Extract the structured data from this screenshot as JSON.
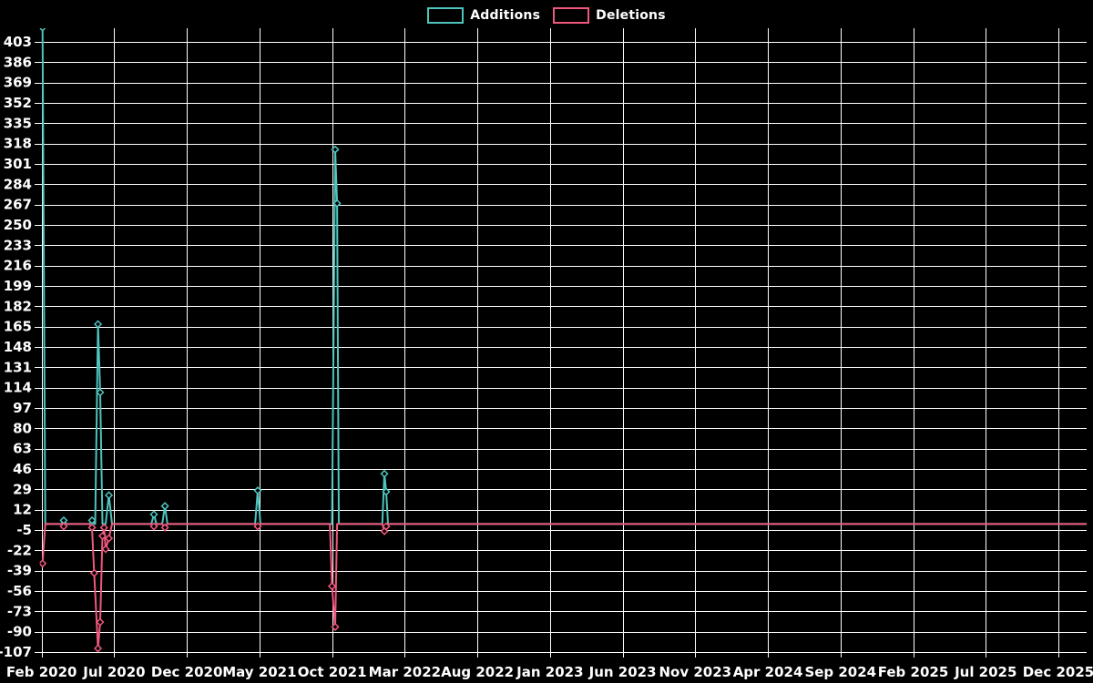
{
  "legend": {
    "additions_label": "Additions",
    "deletions_label": "Deletions"
  },
  "colors": {
    "background": "#000000",
    "grid": "#ffffff",
    "text": "#ffffff",
    "additions": "#4ec4bd",
    "deletions": "#f0587e"
  },
  "chart_data": {
    "type": "line",
    "title": "",
    "xlabel": "",
    "ylabel": "",
    "grid": true,
    "legend_position": "top-center",
    "background": "#000000",
    "y_ticks": [
      403,
      386,
      369,
      352,
      335,
      318,
      301,
      284,
      267,
      250,
      233,
      216,
      199,
      182,
      165,
      148,
      131,
      114,
      97,
      80,
      63,
      46,
      29,
      12,
      -5,
      -22,
      -39,
      -56,
      -73,
      -90,
      -107
    ],
    "ylim": [
      -110,
      413
    ],
    "x_ticks": {
      "months": [
        0,
        5,
        10,
        15,
        20,
        25,
        30,
        35,
        40,
        45,
        50,
        55,
        60,
        65,
        70
      ],
      "labels": [
        "Feb 2020",
        "Jul 2020",
        "Dec 2020",
        "May 2021",
        "Oct 2021",
        "Mar 2022",
        "Aug 2022",
        "Jan 2023",
        "Jun 2023",
        "Nov 2023",
        "Apr 2024",
        "Sep 2024",
        "Feb 2025",
        "Jul 2025",
        "Dec 2025"
      ],
      "xlim_months": [
        0,
        71.95
      ]
    },
    "marker": "diamond",
    "series": [
      {
        "name": "Additions",
        "color": "#4ec4bd",
        "points": [
          [
            0.06,
            415
          ],
          [
            0.25,
            0
          ],
          [
            1.35,
            0
          ],
          [
            1.52,
            3
          ],
          [
            1.7,
            0
          ],
          [
            3.3,
            0
          ],
          [
            3.47,
            3
          ],
          [
            3.62,
            0
          ],
          [
            3.69,
            0
          ],
          [
            3.88,
            167
          ],
          [
            4.03,
            110
          ],
          [
            4.19,
            0
          ],
          [
            4.41,
            0
          ],
          [
            4.63,
            24
          ],
          [
            4.85,
            0
          ],
          [
            7.55,
            0
          ],
          [
            7.73,
            8
          ],
          [
            7.9,
            0
          ],
          [
            8.3,
            0
          ],
          [
            8.49,
            15
          ],
          [
            8.66,
            0
          ],
          [
            14.7,
            0
          ],
          [
            14.88,
            28
          ],
          [
            15.06,
            0
          ],
          [
            19.99,
            0
          ],
          [
            20.21,
            313
          ],
          [
            20.34,
            268
          ],
          [
            20.46,
            0
          ],
          [
            23.45,
            0
          ],
          [
            23.6,
            42
          ],
          [
            23.72,
            27
          ],
          [
            23.85,
            0
          ],
          [
            71.95,
            0
          ]
        ]
      },
      {
        "name": "Deletions",
        "color": "#f0587e",
        "points": [
          [
            0.06,
            -33
          ],
          [
            0.25,
            0
          ],
          [
            1.35,
            0
          ],
          [
            1.52,
            -2
          ],
          [
            1.7,
            0
          ],
          [
            3.3,
            0
          ],
          [
            3.47,
            -3
          ],
          [
            3.62,
            -41
          ],
          [
            3.88,
            -104
          ],
          [
            4.03,
            -82
          ],
          [
            4.19,
            -10
          ],
          [
            4.3,
            -3
          ],
          [
            4.41,
            -21
          ],
          [
            4.63,
            -12
          ],
          [
            4.85,
            0
          ],
          [
            7.55,
            0
          ],
          [
            7.73,
            -2
          ],
          [
            7.9,
            0
          ],
          [
            8.3,
            0
          ],
          [
            8.49,
            -3
          ],
          [
            8.66,
            0
          ],
          [
            14.7,
            0
          ],
          [
            14.88,
            -2
          ],
          [
            15.06,
            0
          ],
          [
            19.85,
            0
          ],
          [
            19.99,
            -52
          ],
          [
            20.21,
            -86
          ],
          [
            20.34,
            0
          ],
          [
            23.45,
            0
          ],
          [
            23.6,
            -6
          ],
          [
            23.72,
            -2
          ],
          [
            23.85,
            0
          ],
          [
            71.95,
            0
          ]
        ]
      }
    ]
  }
}
